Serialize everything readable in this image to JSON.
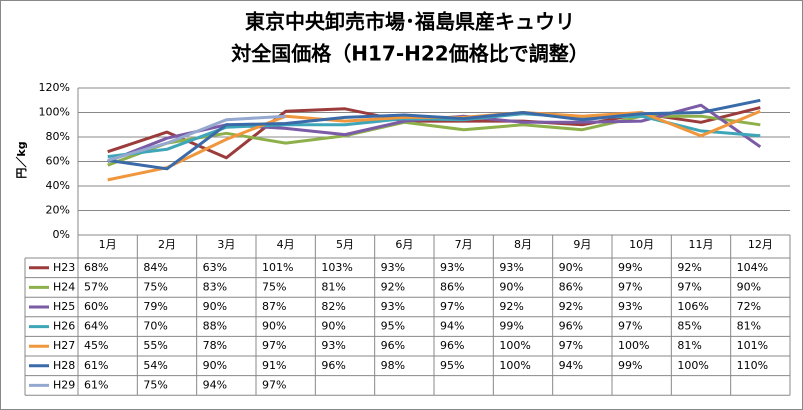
{
  "chart_data": {
    "type": "line",
    "title": [
      "東京中央卸売市場･福島県産キュウリ",
      "対全国価格（H17-H22価格比で調整）"
    ],
    "y_label": "円／kg",
    "categories": [
      "1月",
      "2月",
      "3月",
      "4月",
      "5月",
      "6月",
      "7月",
      "8月",
      "9月",
      "10月",
      "11月",
      "12月"
    ],
    "ylim": [
      0,
      120
    ],
    "yticks": [
      {
        "value": 0,
        "label": "0%"
      },
      {
        "value": 20,
        "label": "20%"
      },
      {
        "value": 40,
        "label": "40%"
      },
      {
        "value": 60,
        "label": "60%"
      },
      {
        "value": 80,
        "label": "80%"
      },
      {
        "value": 100,
        "label": "100%"
      },
      {
        "value": 120,
        "label": "120%"
      }
    ],
    "grid": true,
    "series": [
      {
        "name": "H23",
        "color": "#9b3b3b",
        "values": [
          68,
          84,
          63,
          101,
          103,
          93,
          93,
          93,
          90,
          99,
          92,
          104
        ],
        "value_labels": [
          "68%",
          "84%",
          "63%",
          "101%",
          "103%",
          "93%",
          "93%",
          "93%",
          "90%",
          "99%",
          "92%",
          "104%"
        ]
      },
      {
        "name": "H24",
        "color": "#8db04a",
        "values": [
          57,
          75,
          83,
          75,
          81,
          92,
          86,
          90,
          86,
          97,
          97,
          90
        ],
        "value_labels": [
          "57%",
          "75%",
          "83%",
          "75%",
          "81%",
          "92%",
          "86%",
          "90%",
          "86%",
          "97%",
          "97%",
          "90%"
        ]
      },
      {
        "name": "H25",
        "color": "#7b5aa6",
        "values": [
          60,
          79,
          90,
          87,
          82,
          93,
          97,
          92,
          92,
          93,
          106,
          72
        ],
        "value_labels": [
          "60%",
          "79%",
          "90%",
          "87%",
          "82%",
          "93%",
          "97%",
          "92%",
          "92%",
          "93%",
          "106%",
          "72%"
        ]
      },
      {
        "name": "H26",
        "color": "#3ea6b8",
        "values": [
          64,
          70,
          88,
          90,
          90,
          95,
          94,
          99,
          96,
          97,
          85,
          81
        ],
        "value_labels": [
          "64%",
          "70%",
          "88%",
          "90%",
          "90%",
          "95%",
          "94%",
          "99%",
          "96%",
          "97%",
          "85%",
          "81%"
        ]
      },
      {
        "name": "H27",
        "color": "#f0963c",
        "values": [
          45,
          55,
          78,
          97,
          93,
          96,
          96,
          100,
          97,
          100,
          81,
          101
        ],
        "value_labels": [
          "45%",
          "55%",
          "78%",
          "97%",
          "93%",
          "96%",
          "96%",
          "100%",
          "97%",
          "100%",
          "81%",
          "101%"
        ]
      },
      {
        "name": "H28",
        "color": "#3a6aa8",
        "values": [
          61,
          54,
          90,
          91,
          96,
          98,
          95,
          100,
          94,
          99,
          100,
          110
        ],
        "value_labels": [
          "61%",
          "54%",
          "90%",
          "91%",
          "96%",
          "98%",
          "95%",
          "100%",
          "94%",
          "99%",
          "100%",
          "110%"
        ]
      },
      {
        "name": "H29",
        "color": "#95a9d0",
        "values": [
          61,
          75,
          94,
          97,
          null,
          null,
          null,
          null,
          null,
          null,
          null,
          null
        ],
        "value_labels": [
          "61%",
          "75%",
          "94%",
          "97%",
          null,
          null,
          null,
          null,
          null,
          null,
          null,
          null
        ]
      }
    ]
  }
}
